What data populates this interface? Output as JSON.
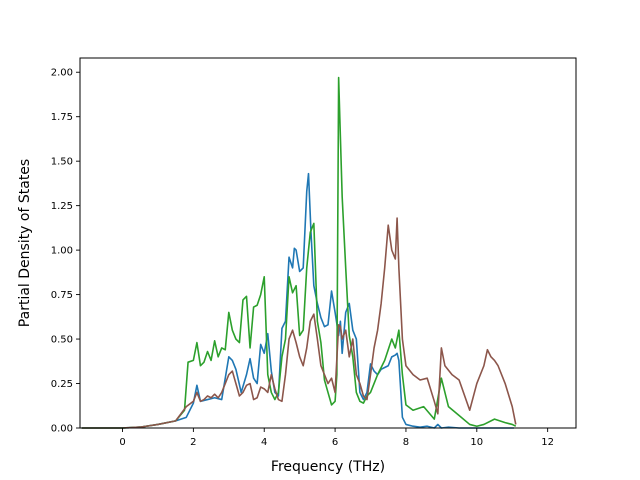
{
  "chart_data": {
    "type": "line",
    "xlabel": "Frequency (THz)",
    "ylabel": "Partial Density of States",
    "xlim": [
      -1.2,
      12.8
    ],
    "ylim": [
      0,
      2.08
    ],
    "xticks": [
      0,
      2,
      4,
      6,
      8,
      10,
      12
    ],
    "xtick_labels": [
      "0",
      "2",
      "4",
      "6",
      "8",
      "10",
      "12"
    ],
    "yticks": [
      0,
      0.25,
      0.5,
      0.75,
      1.0,
      1.25,
      1.5,
      1.75,
      2.0
    ],
    "ytick_labels": [
      "0.00",
      "0.25",
      "0.50",
      "0.75",
      "1.00",
      "1.25",
      "1.50",
      "1.75",
      "2.00"
    ],
    "grid": false,
    "series": [
      {
        "color": "#1f77b4",
        "x": [
          -1.15,
          0,
          0.5,
          1.0,
          1.5,
          1.8,
          2.0,
          2.1,
          2.2,
          2.4,
          2.6,
          2.8,
          3.0,
          3.1,
          3.2,
          3.35,
          3.5,
          3.6,
          3.7,
          3.8,
          3.9,
          4.0,
          4.1,
          4.2,
          4.3,
          4.4,
          4.5,
          4.6,
          4.7,
          4.8,
          4.85,
          4.9,
          5.0,
          5.1,
          5.2,
          5.25,
          5.32,
          5.4,
          5.5,
          5.6,
          5.7,
          5.8,
          5.9,
          6.0,
          6.1,
          6.15,
          6.2,
          6.3,
          6.4,
          6.5,
          6.6,
          6.7,
          6.8,
          6.9,
          7.0,
          7.1,
          7.2,
          7.3,
          7.4,
          7.5,
          7.6,
          7.7,
          7.75,
          7.8,
          7.9,
          8.0,
          8.2,
          8.4,
          8.6,
          8.8,
          8.9,
          9.0,
          9.2,
          9.5,
          10.0,
          10.5,
          11.0,
          11.05
        ],
        "y": [
          0.0,
          0.0,
          0.005,
          0.02,
          0.04,
          0.06,
          0.14,
          0.24,
          0.15,
          0.16,
          0.17,
          0.16,
          0.4,
          0.38,
          0.33,
          0.2,
          0.3,
          0.39,
          0.28,
          0.25,
          0.47,
          0.42,
          0.53,
          0.32,
          0.2,
          0.18,
          0.56,
          0.6,
          0.96,
          0.9,
          1.01,
          1.0,
          0.88,
          0.9,
          1.33,
          1.43,
          1.1,
          0.8,
          0.7,
          0.62,
          0.57,
          0.58,
          0.77,
          0.65,
          0.52,
          0.6,
          0.42,
          0.65,
          0.7,
          0.55,
          0.5,
          0.2,
          0.16,
          0.2,
          0.36,
          0.32,
          0.3,
          0.33,
          0.34,
          0.35,
          0.4,
          0.41,
          0.42,
          0.38,
          0.06,
          0.02,
          0.01,
          0.005,
          0.01,
          0.0,
          0.02,
          0.0,
          0.005,
          0.0,
          0.0,
          0.0,
          0.0,
          0.0
        ]
      },
      {
        "color": "#2ca02c",
        "x": [
          -1.15,
          0,
          0.5,
          1.0,
          1.5,
          1.75,
          1.85,
          2.0,
          2.1,
          2.2,
          2.3,
          2.4,
          2.5,
          2.6,
          2.7,
          2.8,
          2.9,
          3.0,
          3.1,
          3.2,
          3.3,
          3.4,
          3.5,
          3.6,
          3.7,
          3.8,
          3.9,
          4.0,
          4.1,
          4.2,
          4.3,
          4.4,
          4.5,
          4.6,
          4.7,
          4.8,
          4.9,
          5.0,
          5.1,
          5.2,
          5.3,
          5.4,
          5.5,
          5.6,
          5.7,
          5.8,
          5.9,
          6.0,
          6.05,
          6.1,
          6.2,
          6.3,
          6.4,
          6.5,
          6.6,
          6.7,
          6.8,
          6.9,
          7.0,
          7.2,
          7.4,
          7.6,
          7.7,
          7.8,
          7.9,
          8.0,
          8.2,
          8.5,
          8.8,
          9.0,
          9.2,
          9.5,
          9.8,
          10.0,
          10.2,
          10.5,
          10.8,
          11.0,
          11.1
        ],
        "y": [
          0.0,
          0.0,
          0.005,
          0.02,
          0.04,
          0.1,
          0.37,
          0.38,
          0.48,
          0.35,
          0.37,
          0.43,
          0.38,
          0.49,
          0.4,
          0.45,
          0.44,
          0.65,
          0.55,
          0.5,
          0.48,
          0.72,
          0.74,
          0.45,
          0.68,
          0.69,
          0.75,
          0.85,
          0.3,
          0.2,
          0.16,
          0.2,
          0.4,
          0.5,
          0.85,
          0.76,
          0.8,
          0.52,
          0.55,
          0.9,
          1.1,
          1.15,
          0.6,
          0.48,
          0.27,
          0.2,
          0.13,
          0.15,
          0.3,
          1.97,
          1.3,
          0.9,
          0.52,
          0.4,
          0.2,
          0.15,
          0.14,
          0.18,
          0.2,
          0.3,
          0.38,
          0.5,
          0.45,
          0.55,
          0.3,
          0.13,
          0.1,
          0.12,
          0.05,
          0.28,
          0.12,
          0.07,
          0.02,
          0.01,
          0.02,
          0.05,
          0.03,
          0.02,
          0.01
        ]
      },
      {
        "color": "#8c564b",
        "x": [
          -1.15,
          0,
          0.5,
          1.0,
          1.5,
          1.8,
          2.0,
          2.1,
          2.2,
          2.3,
          2.4,
          2.5,
          2.6,
          2.7,
          2.8,
          2.9,
          3.0,
          3.1,
          3.2,
          3.3,
          3.4,
          3.5,
          3.6,
          3.7,
          3.8,
          3.9,
          4.0,
          4.1,
          4.2,
          4.3,
          4.4,
          4.5,
          4.6,
          4.7,
          4.8,
          4.9,
          5.0,
          5.1,
          5.2,
          5.3,
          5.4,
          5.5,
          5.6,
          5.7,
          5.8,
          5.9,
          6.0,
          6.1,
          6.15,
          6.2,
          6.3,
          6.4,
          6.5,
          6.6,
          6.7,
          6.8,
          6.9,
          7.0,
          7.1,
          7.2,
          7.3,
          7.4,
          7.5,
          7.6,
          7.7,
          7.75,
          7.8,
          7.9,
          8.0,
          8.2,
          8.4,
          8.6,
          8.8,
          8.9,
          9.0,
          9.1,
          9.3,
          9.5,
          9.8,
          10.0,
          10.2,
          10.3,
          10.4,
          10.5,
          10.6,
          10.8,
          11.0,
          11.1
        ],
        "y": [
          0.0,
          0.0,
          0.005,
          0.02,
          0.04,
          0.12,
          0.15,
          0.2,
          0.15,
          0.16,
          0.18,
          0.17,
          0.19,
          0.17,
          0.2,
          0.25,
          0.3,
          0.32,
          0.25,
          0.18,
          0.2,
          0.24,
          0.25,
          0.16,
          0.17,
          0.23,
          0.22,
          0.2,
          0.3,
          0.22,
          0.16,
          0.15,
          0.3,
          0.5,
          0.55,
          0.48,
          0.4,
          0.35,
          0.45,
          0.6,
          0.64,
          0.5,
          0.35,
          0.3,
          0.25,
          0.28,
          0.2,
          0.58,
          0.57,
          0.5,
          0.55,
          0.4,
          0.5,
          0.3,
          0.25,
          0.18,
          0.16,
          0.3,
          0.45,
          0.55,
          0.7,
          0.9,
          1.14,
          1.0,
          0.95,
          1.18,
          0.9,
          0.5,
          0.35,
          0.3,
          0.27,
          0.28,
          0.15,
          0.08,
          0.45,
          0.35,
          0.3,
          0.27,
          0.1,
          0.25,
          0.35,
          0.44,
          0.4,
          0.38,
          0.35,
          0.25,
          0.12,
          0.02
        ]
      }
    ]
  }
}
